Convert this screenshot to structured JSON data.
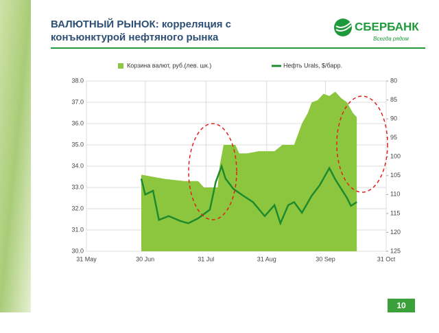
{
  "slide": {
    "title_lines": [
      "ВАЛЮТНЫЙ РЫНОК: корреляция с",
      "конъюнктурой нефтяного рынка"
    ],
    "logo": "СБЕРБАНК",
    "tagline": "Всегда рядом",
    "page": 10
  },
  "chart_data": {
    "type": "area-line",
    "xlim": [
      0,
      153
    ],
    "xticks": [
      {
        "value": 0,
        "label": "31 May"
      },
      {
        "value": 30,
        "label": "30 Jun"
      },
      {
        "value": 61,
        "label": "31 Jul"
      },
      {
        "value": 92,
        "label": "31 Aug"
      },
      {
        "value": 122,
        "label": "30 Sep"
      },
      {
        "value": 153,
        "label": "31 Oct"
      }
    ],
    "ylim": [
      30,
      38
    ],
    "yticks": [
      {
        "value": 30,
        "label": "30.0"
      },
      {
        "value": 31,
        "label": "31.0"
      },
      {
        "value": 32,
        "label": "32.0"
      },
      {
        "value": 33,
        "label": "33.0"
      },
      {
        "value": 34,
        "label": "34.0"
      },
      {
        "value": 35,
        "label": "35.0"
      },
      {
        "value": 36,
        "label": "36.0"
      },
      {
        "value": 37,
        "label": "37.0"
      },
      {
        "value": 38,
        "label": "38.0"
      }
    ],
    "y2lim": [
      125,
      80
    ],
    "y2ticks": [
      80,
      85,
      90,
      95,
      100,
      105,
      110,
      115,
      120,
      125
    ],
    "grid": true,
    "series": [
      {
        "name": "Корзина валют, руб.(лев. шк.)",
        "kind": "area",
        "color": "#8cc63f",
        "x": [
          28,
          40,
          50,
          57,
          60,
          67,
          68,
          70,
          76,
          78,
          82,
          88,
          96,
          100,
          106,
          108,
          110,
          113,
          115,
          118,
          121,
          124,
          127,
          130,
          133,
          136,
          138
        ],
        "values": [
          33.6,
          33.4,
          33.3,
          33.3,
          33.0,
          33.0,
          34.0,
          35.0,
          35.0,
          34.6,
          34.6,
          34.7,
          34.7,
          35.0,
          35.0,
          35.5,
          36.0,
          36.5,
          37.0,
          37.1,
          37.4,
          37.3,
          37.5,
          37.2,
          37.0,
          36.5,
          36.3
        ]
      },
      {
        "name": "Нефть Urals, $/барр.",
        "kind": "line",
        "axis": "y2",
        "color": "#1e8a2e",
        "x": [
          28,
          30,
          34,
          37,
          42,
          48,
          52,
          57,
          63,
          66,
          69,
          71,
          75,
          80,
          85,
          91,
          96,
          99,
          103,
          106,
          110,
          115,
          119,
          124,
          127,
          133,
          135,
          138
        ],
        "values": [
          105.8,
          110,
          109,
          116.7,
          115.7,
          117,
          117.6,
          116.3,
          114,
          106.7,
          102.5,
          105.8,
          108.5,
          110.3,
          112,
          115.7,
          112.8,
          117.6,
          112.8,
          112,
          114.8,
          110.3,
          107.6,
          103,
          106,
          110.9,
          113,
          112
        ]
      }
    ]
  }
}
